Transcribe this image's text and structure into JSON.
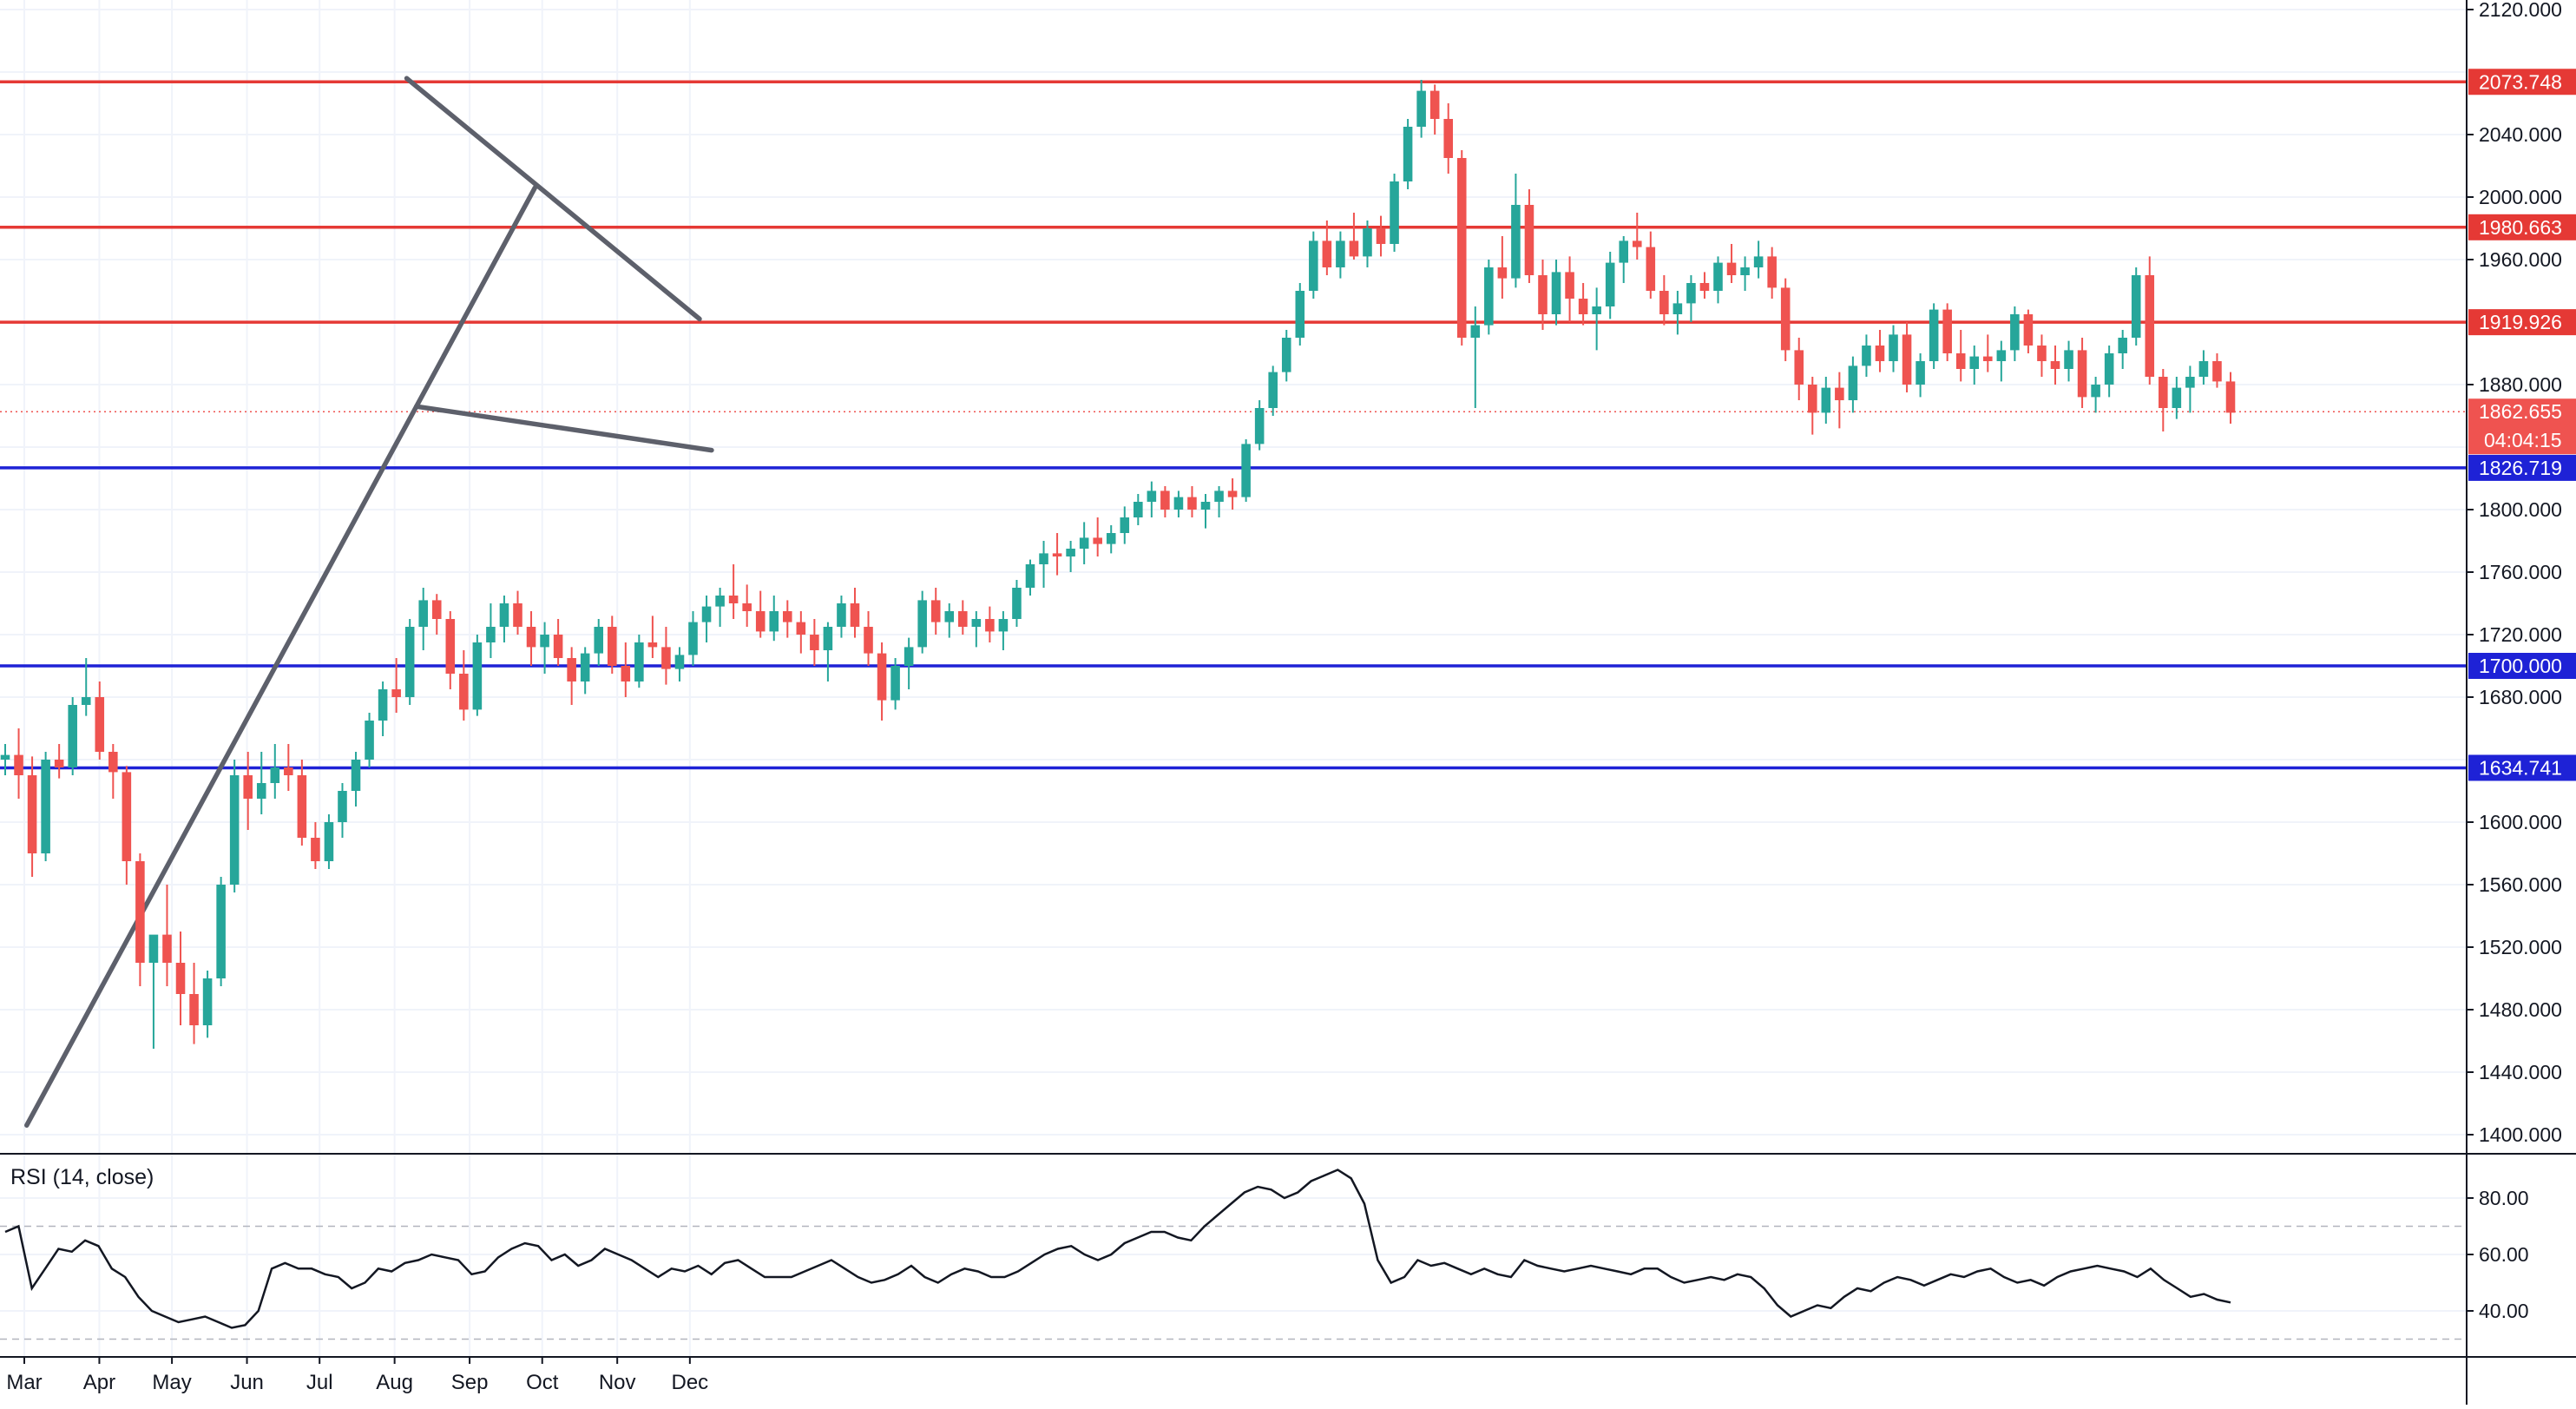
{
  "chart_data": {
    "type": "candlestick",
    "title": "",
    "xlabel": "",
    "ylabel": "",
    "ylim": [
      1385,
      2125
    ],
    "x_months": [
      "Mar",
      "Apr",
      "May",
      "Jun",
      "Jul",
      "Aug",
      "Sep",
      "Oct",
      "Nov",
      "Dec"
    ],
    "price_ticks": [
      2120,
      2080,
      2040,
      2000,
      1960,
      1920,
      1880,
      1840,
      1800,
      1760,
      1720,
      1680,
      1640,
      1600,
      1560,
      1520,
      1480,
      1440,
      1400
    ],
    "price_tick_labels": [
      "2120.000",
      "2040.000",
      "2000.000",
      "1960.000",
      "1880.000",
      "1800.000",
      "1760.000",
      "1720.000",
      "1680.000",
      "1600.000",
      "1560.000",
      "1520.000",
      "1480.000",
      "1440.000",
      "1400.000"
    ],
    "levels": [
      {
        "price": 2073.748,
        "label": "2073.748",
        "color": "#e53935"
      },
      {
        "price": 1980.663,
        "label": "1980.663",
        "color": "#e53935"
      },
      {
        "price": 1919.926,
        "label": "1919.926",
        "color": "#e53935"
      },
      {
        "price": 1826.719,
        "label": "1826.719",
        "color": "#1e22d6"
      },
      {
        "price": 1700.0,
        "label": "1700.000",
        "color": "#1e22d6"
      },
      {
        "price": 1634.741,
        "label": "1634.741",
        "color": "#1e22d6"
      }
    ],
    "current_price": {
      "price": 1862.655,
      "label": "1862.655",
      "countdown": "04:04:15",
      "color": "#ef5350"
    },
    "trendlines": [
      {
        "from": [
          "2020-03-02",
          1406
        ],
        "to": [
          "2020-09-28",
          2006
        ]
      },
      {
        "from": [
          "2020-08-06",
          2076
        ],
        "to": [
          "2020-12-05",
          1922
        ]
      },
      {
        "from": [
          "2020-08-10",
          1866
        ],
        "to": [
          "2020-12-10",
          1838
        ]
      }
    ],
    "candles_ohlc": [
      [
        1640,
        1650,
        1630,
        1643
      ],
      [
        1643,
        1660,
        1615,
        1630
      ],
      [
        1630,
        1642,
        1565,
        1580
      ],
      [
        1580,
        1645,
        1575,
        1640
      ],
      [
        1640,
        1650,
        1628,
        1635
      ],
      [
        1635,
        1680,
        1630,
        1675
      ],
      [
        1675,
        1705,
        1668,
        1680
      ],
      [
        1680,
        1690,
        1640,
        1645
      ],
      [
        1645,
        1650,
        1615,
        1632
      ],
      [
        1632,
        1636,
        1560,
        1575
      ],
      [
        1575,
        1580,
        1495,
        1510
      ],
      [
        1510,
        1520,
        1455,
        1528
      ],
      [
        1528,
        1560,
        1495,
        1510
      ],
      [
        1510,
        1530,
        1470,
        1490
      ],
      [
        1490,
        1510,
        1458,
        1470
      ],
      [
        1470,
        1505,
        1462,
        1500
      ],
      [
        1500,
        1565,
        1495,
        1560
      ],
      [
        1560,
        1640,
        1555,
        1630
      ],
      [
        1630,
        1645,
        1595,
        1615
      ],
      [
        1615,
        1645,
        1605,
        1625
      ],
      [
        1625,
        1650,
        1615,
        1635
      ],
      [
        1635,
        1650,
        1620,
        1630
      ],
      [
        1630,
        1640,
        1585,
        1590
      ],
      [
        1590,
        1600,
        1570,
        1575
      ],
      [
        1575,
        1605,
        1570,
        1600
      ],
      [
        1600,
        1625,
        1590,
        1620
      ],
      [
        1620,
        1645,
        1610,
        1640
      ],
      [
        1640,
        1670,
        1635,
        1665
      ],
      [
        1665,
        1690,
        1655,
        1685
      ],
      [
        1685,
        1705,
        1670,
        1680
      ],
      [
        1680,
        1730,
        1675,
        1725
      ],
      [
        1725,
        1750,
        1710,
        1742
      ],
      [
        1742,
        1746,
        1720,
        1730
      ],
      [
        1730,
        1735,
        1685,
        1695
      ],
      [
        1695,
        1710,
        1665,
        1672
      ],
      [
        1672,
        1720,
        1668,
        1715
      ],
      [
        1715,
        1740,
        1705,
        1725
      ],
      [
        1725,
        1745,
        1715,
        1740
      ],
      [
        1740,
        1748,
        1720,
        1725
      ],
      [
        1725,
        1735,
        1700,
        1712
      ],
      [
        1712,
        1728,
        1695,
        1720
      ],
      [
        1720,
        1730,
        1700,
        1705
      ],
      [
        1705,
        1712,
        1675,
        1690
      ],
      [
        1690,
        1712,
        1682,
        1708
      ],
      [
        1708,
        1730,
        1700,
        1725
      ],
      [
        1725,
        1732,
        1695,
        1700
      ],
      [
        1700,
        1715,
        1680,
        1690
      ],
      [
        1690,
        1720,
        1686,
        1715
      ],
      [
        1715,
        1732,
        1705,
        1712
      ],
      [
        1712,
        1725,
        1688,
        1698
      ],
      [
        1698,
        1712,
        1690,
        1707
      ],
      [
        1707,
        1735,
        1700,
        1728
      ],
      [
        1728,
        1745,
        1715,
        1738
      ],
      [
        1738,
        1750,
        1725,
        1745
      ],
      [
        1745,
        1765,
        1730,
        1740
      ],
      [
        1740,
        1752,
        1725,
        1735
      ],
      [
        1735,
        1748,
        1718,
        1722
      ],
      [
        1722,
        1745,
        1716,
        1735
      ],
      [
        1735,
        1742,
        1718,
        1728
      ],
      [
        1728,
        1735,
        1708,
        1720
      ],
      [
        1720,
        1730,
        1700,
        1710
      ],
      [
        1710,
        1728,
        1690,
        1725
      ],
      [
        1725,
        1745,
        1718,
        1740
      ],
      [
        1740,
        1750,
        1718,
        1725
      ],
      [
        1725,
        1735,
        1700,
        1708
      ],
      [
        1708,
        1715,
        1665,
        1678
      ],
      [
        1678,
        1705,
        1672,
        1700
      ],
      [
        1700,
        1718,
        1685,
        1712
      ],
      [
        1712,
        1748,
        1708,
        1742
      ],
      [
        1742,
        1750,
        1720,
        1728
      ],
      [
        1728,
        1740,
        1718,
        1735
      ],
      [
        1735,
        1742,
        1720,
        1725
      ],
      [
        1725,
        1735,
        1712,
        1730
      ],
      [
        1730,
        1738,
        1715,
        1722
      ],
      [
        1722,
        1735,
        1710,
        1730
      ],
      [
        1730,
        1755,
        1725,
        1750
      ],
      [
        1750,
        1768,
        1745,
        1765
      ],
      [
        1765,
        1780,
        1750,
        1772
      ],
      [
        1772,
        1785,
        1758,
        1770
      ],
      [
        1770,
        1780,
        1760,
        1775
      ],
      [
        1775,
        1792,
        1765,
        1782
      ],
      [
        1782,
        1795,
        1770,
        1778
      ],
      [
        1778,
        1790,
        1772,
        1785
      ],
      [
        1785,
        1802,
        1778,
        1795
      ],
      [
        1795,
        1810,
        1790,
        1805
      ],
      [
        1805,
        1818,
        1795,
        1812
      ],
      [
        1812,
        1815,
        1795,
        1800
      ],
      [
        1800,
        1812,
        1795,
        1808
      ],
      [
        1808,
        1815,
        1795,
        1800
      ],
      [
        1800,
        1810,
        1788,
        1805
      ],
      [
        1805,
        1815,
        1795,
        1812
      ],
      [
        1812,
        1820,
        1800,
        1808
      ],
      [
        1808,
        1845,
        1805,
        1842
      ],
      [
        1842,
        1870,
        1838,
        1865
      ],
      [
        1865,
        1892,
        1860,
        1888
      ],
      [
        1888,
        1915,
        1882,
        1910
      ],
      [
        1910,
        1945,
        1905,
        1940
      ],
      [
        1940,
        1978,
        1935,
        1972
      ],
      [
        1972,
        1985,
        1950,
        1955
      ],
      [
        1955,
        1978,
        1948,
        1972
      ],
      [
        1972,
        1990,
        1960,
        1962
      ],
      [
        1962,
        1985,
        1955,
        1980
      ],
      [
        1980,
        1988,
        1962,
        1970
      ],
      [
        1970,
        2015,
        1965,
        2010
      ],
      [
        2010,
        2050,
        2005,
        2045
      ],
      [
        2045,
        2075,
        2038,
        2068
      ],
      [
        2068,
        2072,
        2040,
        2050
      ],
      [
        2050,
        2060,
        2015,
        2025
      ],
      [
        2025,
        2030,
        1905,
        1910
      ],
      [
        1910,
        1930,
        1865,
        1918
      ],
      [
        1918,
        1960,
        1912,
        1955
      ],
      [
        1955,
        1975,
        1935,
        1948
      ],
      [
        1948,
        2015,
        1942,
        1995
      ],
      [
        1995,
        2005,
        1945,
        1950
      ],
      [
        1950,
        1960,
        1915,
        1925
      ],
      [
        1925,
        1960,
        1918,
        1952
      ],
      [
        1952,
        1962,
        1920,
        1935
      ],
      [
        1935,
        1945,
        1918,
        1925
      ],
      [
        1925,
        1942,
        1902,
        1930
      ],
      [
        1930,
        1965,
        1922,
        1958
      ],
      [
        1958,
        1975,
        1945,
        1972
      ],
      [
        1972,
        1990,
        1960,
        1968
      ],
      [
        1968,
        1978,
        1935,
        1940
      ],
      [
        1940,
        1950,
        1918,
        1925
      ],
      [
        1925,
        1940,
        1912,
        1932
      ],
      [
        1932,
        1950,
        1920,
        1945
      ],
      [
        1945,
        1952,
        1935,
        1940
      ],
      [
        1940,
        1962,
        1932,
        1958
      ],
      [
        1958,
        1970,
        1945,
        1950
      ],
      [
        1950,
        1962,
        1940,
        1955
      ],
      [
        1955,
        1972,
        1948,
        1962
      ],
      [
        1962,
        1968,
        1935,
        1942
      ],
      [
        1942,
        1948,
        1895,
        1902
      ],
      [
        1902,
        1910,
        1870,
        1880
      ],
      [
        1880,
        1885,
        1848,
        1862
      ],
      [
        1862,
        1885,
        1855,
        1878
      ],
      [
        1878,
        1888,
        1852,
        1870
      ],
      [
        1870,
        1898,
        1862,
        1892
      ],
      [
        1892,
        1912,
        1885,
        1905
      ],
      [
        1905,
        1915,
        1888,
        1895
      ],
      [
        1895,
        1918,
        1888,
        1912
      ],
      [
        1912,
        1920,
        1875,
        1880
      ],
      [
        1880,
        1900,
        1872,
        1895
      ],
      [
        1895,
        1932,
        1890,
        1928
      ],
      [
        1928,
        1932,
        1895,
        1900
      ],
      [
        1900,
        1915,
        1882,
        1890
      ],
      [
        1890,
        1905,
        1880,
        1898
      ],
      [
        1898,
        1912,
        1888,
        1895
      ],
      [
        1895,
        1908,
        1882,
        1902
      ],
      [
        1902,
        1930,
        1895,
        1925
      ],
      [
        1925,
        1928,
        1900,
        1905
      ],
      [
        1905,
        1912,
        1885,
        1895
      ],
      [
        1895,
        1905,
        1880,
        1890
      ],
      [
        1890,
        1908,
        1882,
        1902
      ],
      [
        1902,
        1910,
        1865,
        1872
      ],
      [
        1872,
        1885,
        1862,
        1880
      ],
      [
        1880,
        1905,
        1872,
        1900
      ],
      [
        1900,
        1915,
        1890,
        1910
      ],
      [
        1910,
        1955,
        1905,
        1950
      ],
      [
        1950,
        1962,
        1880,
        1885
      ],
      [
        1885,
        1890,
        1850,
        1865
      ],
      [
        1865,
        1885,
        1858,
        1878
      ],
      [
        1878,
        1892,
        1862,
        1885
      ],
      [
        1885,
        1902,
        1880,
        1895
      ],
      [
        1895,
        1900,
        1878,
        1882
      ],
      [
        1882,
        1888,
        1855,
        1862
      ]
    ],
    "rsi": {
      "title": "RSI (14, close)",
      "ylim": [
        20,
        100
      ],
      "ticks": [
        80,
        60,
        40
      ],
      "tick_labels": [
        "80.00",
        "60.00",
        "40.00"
      ],
      "bands": [
        70,
        30
      ],
      "values": [
        68,
        70,
        48,
        55,
        62,
        61,
        65,
        63,
        55,
        52,
        45,
        40,
        38,
        36,
        37,
        38,
        36,
        34,
        35,
        40,
        55,
        57,
        55,
        55,
        53,
        52,
        48,
        50,
        55,
        54,
        57,
        58,
        60,
        59,
        58,
        53,
        54,
        59,
        62,
        64,
        63,
        58,
        60,
        56,
        58,
        62,
        60,
        58,
        55,
        52,
        55,
        54,
        56,
        53,
        57,
        58,
        55,
        52,
        52,
        52,
        54,
        56,
        58,
        55,
        52,
        50,
        51,
        53,
        56,
        52,
        50,
        53,
        55,
        54,
        52,
        52,
        54,
        57,
        60,
        62,
        63,
        60,
        58,
        60,
        64,
        66,
        68,
        68,
        66,
        65,
        70,
        74,
        78,
        82,
        84,
        83,
        80,
        82,
        86,
        88,
        90,
        87,
        78,
        58,
        50,
        52,
        58,
        56,
        57,
        55,
        53,
        55,
        53,
        52,
        58,
        56,
        55,
        54,
        55,
        56,
        55,
        54,
        53,
        55,
        55,
        52,
        50,
        51,
        52,
        51,
        53,
        52,
        48,
        42,
        38,
        40,
        42,
        41,
        45,
        48,
        47,
        50,
        52,
        51,
        49,
        51,
        53,
        52,
        54,
        55,
        52,
        50,
        51,
        49,
        52,
        54,
        55,
        56,
        55,
        54,
        52,
        55,
        51,
        48,
        45,
        46,
        44,
        43
      ]
    }
  }
}
